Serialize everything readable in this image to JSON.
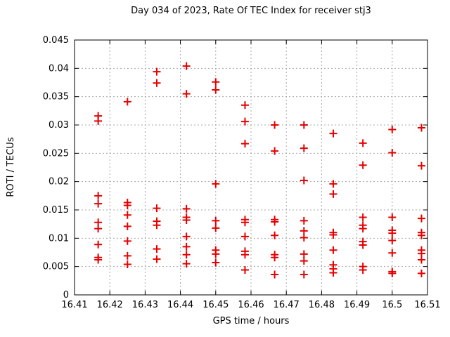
{
  "chart_data": {
    "type": "scatter",
    "title": "Day 034 of 2023, Rate Of TEC Index for receiver stj3",
    "xlabel": "GPS time / hours",
    "ylabel": "ROTI / TECUs",
    "xlim": [
      16.41,
      16.51
    ],
    "ylim": [
      0,
      0.045
    ],
    "xticks": [
      16.41,
      16.42,
      16.43,
      16.44,
      16.45,
      16.46,
      16.47,
      16.48,
      16.49,
      16.5,
      16.51
    ],
    "xtick_labels": [
      "16.41",
      "16.42",
      "16.43",
      "16.44",
      "16.45",
      "16.46",
      "16.47",
      "16.48",
      "16.49",
      "16.5",
      "16.51"
    ],
    "yticks": [
      0,
      0.005,
      0.01,
      0.015,
      0.02,
      0.025,
      0.03,
      0.035,
      0.04,
      0.045
    ],
    "ytick_labels": [
      "0",
      "0.005",
      "0.01",
      "0.015",
      "0.02",
      "0.025",
      "0.03",
      "0.035",
      "0.04",
      "0.045"
    ],
    "grid": true,
    "legend": "none",
    "marker": {
      "shape": "plus",
      "color": "#e60000"
    },
    "grid_color": "#a8a8a8",
    "border_color": "#000000",
    "series": [
      {
        "name": "ROTI",
        "points": [
          [
            16.4167,
            0.0316
          ],
          [
            16.4167,
            0.0307
          ],
          [
            16.4167,
            0.0175
          ],
          [
            16.4167,
            0.0161
          ],
          [
            16.4167,
            0.0128
          ],
          [
            16.4167,
            0.0117
          ],
          [
            16.4167,
            0.0089
          ],
          [
            16.4167,
            0.0066
          ],
          [
            16.4167,
            0.0062
          ],
          [
            16.425,
            0.0341
          ],
          [
            16.425,
            0.0163
          ],
          [
            16.425,
            0.0158
          ],
          [
            16.425,
            0.0141
          ],
          [
            16.425,
            0.0121
          ],
          [
            16.425,
            0.0095
          ],
          [
            16.425,
            0.0069
          ],
          [
            16.425,
            0.0054
          ],
          [
            16.4333,
            0.0394
          ],
          [
            16.4333,
            0.0374
          ],
          [
            16.4333,
            0.0153
          ],
          [
            16.4333,
            0.013
          ],
          [
            16.4333,
            0.0123
          ],
          [
            16.4333,
            0.0081
          ],
          [
            16.4333,
            0.0063
          ],
          [
            16.4417,
            0.0404
          ],
          [
            16.4417,
            0.0355
          ],
          [
            16.4417,
            0.0152
          ],
          [
            16.4417,
            0.0137
          ],
          [
            16.4417,
            0.0132
          ],
          [
            16.4417,
            0.0103
          ],
          [
            16.4417,
            0.0085
          ],
          [
            16.4417,
            0.0071
          ],
          [
            16.4417,
            0.0055
          ],
          [
            16.45,
            0.0376
          ],
          [
            16.45,
            0.0362
          ],
          [
            16.45,
            0.0196
          ],
          [
            16.45,
            0.0131
          ],
          [
            16.45,
            0.0118
          ],
          [
            16.45,
            0.0079
          ],
          [
            16.45,
            0.0072
          ],
          [
            16.45,
            0.0057
          ],
          [
            16.4583,
            0.0335
          ],
          [
            16.4583,
            0.0306
          ],
          [
            16.4583,
            0.0267
          ],
          [
            16.4583,
            0.0133
          ],
          [
            16.4583,
            0.0128
          ],
          [
            16.4583,
            0.0103
          ],
          [
            16.4583,
            0.0077
          ],
          [
            16.4583,
            0.0071
          ],
          [
            16.4583,
            0.0044
          ],
          [
            16.4667,
            0.03
          ],
          [
            16.4667,
            0.0254
          ],
          [
            16.4667,
            0.0133
          ],
          [
            16.4667,
            0.0129
          ],
          [
            16.4667,
            0.0105
          ],
          [
            16.4667,
            0.0071
          ],
          [
            16.4667,
            0.0066
          ],
          [
            16.4667,
            0.0036
          ],
          [
            16.475,
            0.03
          ],
          [
            16.475,
            0.0259
          ],
          [
            16.475,
            0.0202
          ],
          [
            16.475,
            0.0131
          ],
          [
            16.475,
            0.0113
          ],
          [
            16.475,
            0.0101
          ],
          [
            16.475,
            0.0072
          ],
          [
            16.475,
            0.006
          ],
          [
            16.475,
            0.0036
          ],
          [
            16.4833,
            0.0285
          ],
          [
            16.4833,
            0.0196
          ],
          [
            16.4833,
            0.0178
          ],
          [
            16.4833,
            0.011
          ],
          [
            16.4833,
            0.0106
          ],
          [
            16.4833,
            0.0079
          ],
          [
            16.4833,
            0.0053
          ],
          [
            16.4833,
            0.0046
          ],
          [
            16.4833,
            0.0039
          ],
          [
            16.4917,
            0.0268
          ],
          [
            16.4917,
            0.0229
          ],
          [
            16.4917,
            0.0137
          ],
          [
            16.4917,
            0.0123
          ],
          [
            16.4917,
            0.0117
          ],
          [
            16.4917,
            0.0094
          ],
          [
            16.4917,
            0.0088
          ],
          [
            16.4917,
            0.005
          ],
          [
            16.4917,
            0.0044
          ],
          [
            16.5,
            0.0292
          ],
          [
            16.5,
            0.0251
          ],
          [
            16.5,
            0.0137
          ],
          [
            16.5,
            0.0114
          ],
          [
            16.5,
            0.0109
          ],
          [
            16.5,
            0.0096
          ],
          [
            16.5,
            0.0074
          ],
          [
            16.5,
            0.0041
          ],
          [
            16.5,
            0.0038
          ],
          [
            16.5083,
            0.0295
          ],
          [
            16.5083,
            0.0228
          ],
          [
            16.5083,
            0.0135
          ],
          [
            16.5083,
            0.011
          ],
          [
            16.5083,
            0.0105
          ],
          [
            16.5083,
            0.0079
          ],
          [
            16.5083,
            0.0073
          ],
          [
            16.5083,
            0.0062
          ],
          [
            16.5083,
            0.0038
          ]
        ]
      }
    ]
  }
}
